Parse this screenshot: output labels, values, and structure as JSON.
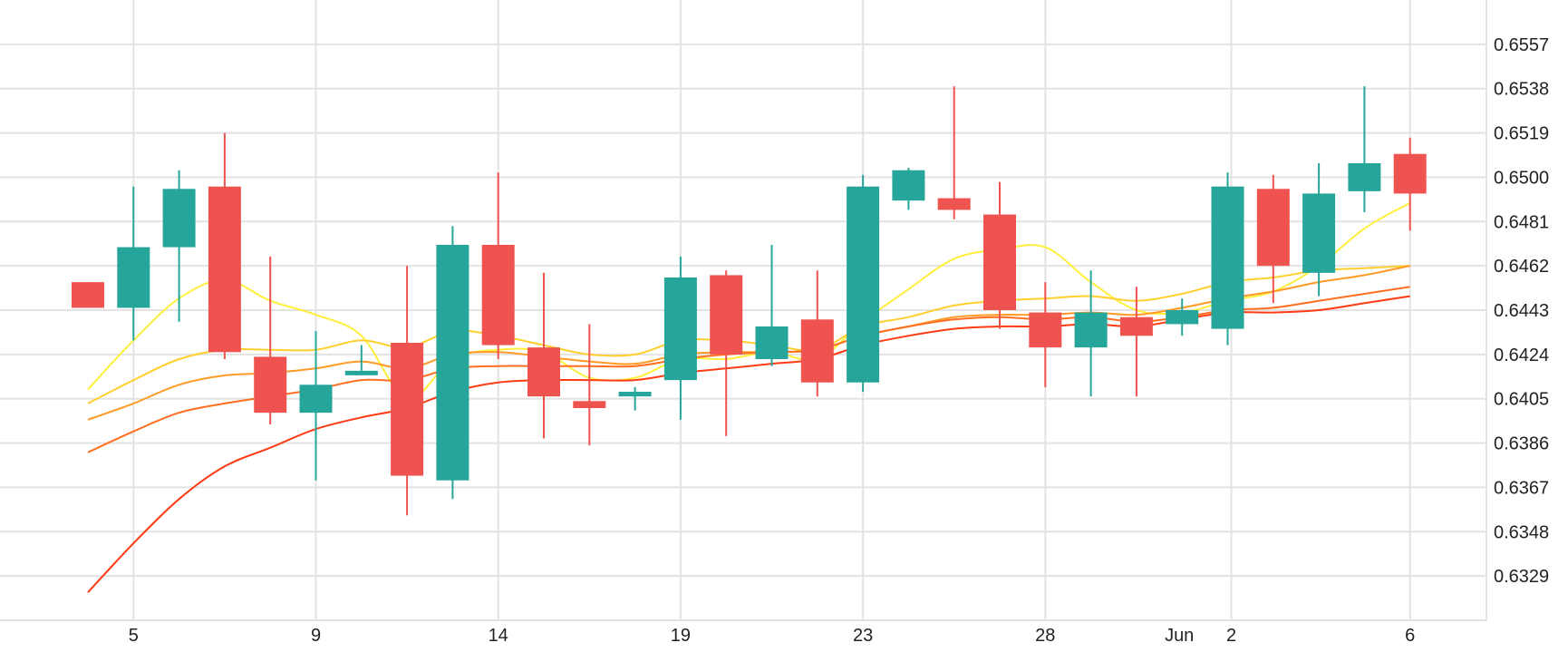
{
  "chart_data": {
    "type": "candlestick",
    "title": "",
    "xlabel": "",
    "ylabel": "",
    "x_tick_labels": [
      "5",
      "9",
      "14",
      "19",
      "23",
      "28",
      "Jun",
      "2",
      "6"
    ],
    "y_ticks": [
      "0.6557",
      "0.6538",
      "0.6519",
      "0.6500",
      "0.6481",
      "0.6462",
      "0.6443",
      "0.6424",
      "0.6405",
      "0.6386",
      "0.6367",
      "0.6348",
      "0.6329"
    ],
    "ylim": [
      0.631,
      0.6576
    ],
    "grid": true,
    "colors": {
      "up": "#26a69a",
      "down": "#ef5350",
      "grid": "#e3e3e3",
      "axis_text": "#222222"
    },
    "dates": [
      "May 4",
      "May 5",
      "May 6",
      "May 7",
      "May 8",
      "May 9",
      "May 10",
      "May 12",
      "May 13",
      "May 14",
      "May 15",
      "May 16",
      "May 18",
      "May 19",
      "May 20",
      "May 21",
      "May 22",
      "May 23",
      "May 24",
      "May 25",
      "May 27",
      "May 28",
      "May 29",
      "May 30",
      "Jun 1",
      "Jun 2",
      "Jun 3",
      "Jun 4",
      "Jun 5",
      "Jun 6"
    ],
    "candles": [
      {
        "date": "May 4",
        "open": 0.6455,
        "high": 0.6455,
        "low": 0.6444,
        "close": 0.6444
      },
      {
        "date": "May 5",
        "open": 0.6444,
        "high": 0.6496,
        "low": 0.643,
        "close": 0.647
      },
      {
        "date": "May 6",
        "open": 0.647,
        "high": 0.6503,
        "low": 0.6438,
        "close": 0.6495
      },
      {
        "date": "May 7",
        "open": 0.6496,
        "high": 0.6519,
        "low": 0.6422,
        "close": 0.6425
      },
      {
        "date": "May 8",
        "open": 0.6423,
        "high": 0.6466,
        "low": 0.6394,
        "close": 0.6399
      },
      {
        "date": "May 9",
        "open": 0.6399,
        "high": 0.6434,
        "low": 0.637,
        "close": 0.6411
      },
      {
        "date": "May 10",
        "open": 0.6417,
        "high": 0.6428,
        "low": 0.6417,
        "close": 0.6417
      },
      {
        "date": "May 12",
        "open": 0.6429,
        "high": 0.6462,
        "low": 0.6355,
        "close": 0.6372
      },
      {
        "date": "May 13",
        "open": 0.637,
        "high": 0.6479,
        "low": 0.6362,
        "close": 0.6471
      },
      {
        "date": "May 14",
        "open": 0.6471,
        "high": 0.6502,
        "low": 0.6422,
        "close": 0.6428
      },
      {
        "date": "May 15",
        "open": 0.6427,
        "high": 0.6459,
        "low": 0.6388,
        "close": 0.6406
      },
      {
        "date": "May 16",
        "open": 0.6404,
        "high": 0.6437,
        "low": 0.6385,
        "close": 0.6401
      },
      {
        "date": "May 18",
        "open": 0.6406,
        "high": 0.641,
        "low": 0.64,
        "close": 0.6408
      },
      {
        "date": "May 19",
        "open": 0.6413,
        "high": 0.6466,
        "low": 0.6396,
        "close": 0.6457
      },
      {
        "date": "May 20",
        "open": 0.6458,
        "high": 0.646,
        "low": 0.6389,
        "close": 0.6424
      },
      {
        "date": "May 21",
        "open": 0.6422,
        "high": 0.6471,
        "low": 0.6419,
        "close": 0.6436
      },
      {
        "date": "May 22",
        "open": 0.6439,
        "high": 0.646,
        "low": 0.6406,
        "close": 0.6412
      },
      {
        "date": "May 23",
        "open": 0.6412,
        "high": 0.6501,
        "low": 0.6408,
        "close": 0.6496
      },
      {
        "date": "May 24",
        "open": 0.649,
        "high": 0.6504,
        "low": 0.6486,
        "close": 0.6503
      },
      {
        "date": "May 25",
        "open": 0.6491,
        "high": 0.6539,
        "low": 0.6482,
        "close": 0.6486
      },
      {
        "date": "May 27",
        "open": 0.6484,
        "high": 0.6498,
        "low": 0.6435,
        "close": 0.6443
      },
      {
        "date": "May 28",
        "open": 0.6442,
        "high": 0.6455,
        "low": 0.641,
        "close": 0.6427
      },
      {
        "date": "May 29",
        "open": 0.6427,
        "high": 0.646,
        "low": 0.6406,
        "close": 0.6442
      },
      {
        "date": "May 30",
        "open": 0.644,
        "high": 0.6453,
        "low": 0.6406,
        "close": 0.6432
      },
      {
        "date": "Jun 1",
        "open": 0.6437,
        "high": 0.6448,
        "low": 0.6432,
        "close": 0.6443
      },
      {
        "date": "Jun 2",
        "open": 0.6435,
        "high": 0.6502,
        "low": 0.6428,
        "close": 0.6496
      },
      {
        "date": "Jun 3",
        "open": 0.6495,
        "high": 0.6501,
        "low": 0.6446,
        "close": 0.6462
      },
      {
        "date": "Jun 4",
        "open": 0.6459,
        "high": 0.6506,
        "low": 0.6449,
        "close": 0.6493
      },
      {
        "date": "Jun 5",
        "open": 0.6494,
        "high": 0.6539,
        "low": 0.6485,
        "close": 0.6506
      },
      {
        "date": "Jun 6",
        "open": 0.651,
        "high": 0.6517,
        "low": 0.6477,
        "close": 0.6493
      }
    ],
    "series": [
      {
        "color": "#ffef3a",
        "values": [
          0.6409,
          0.643,
          0.6448,
          0.6456,
          0.6447,
          0.6441,
          0.6432,
          0.6405,
          0.6422,
          0.6426,
          0.6425,
          0.6414,
          0.6414,
          0.6422,
          0.6422,
          0.6425,
          0.6422,
          0.6438,
          0.6452,
          0.6465,
          0.6469,
          0.647,
          0.6455,
          0.6443,
          0.6442,
          0.6447,
          0.6451,
          0.6462,
          0.6478,
          0.6489
        ]
      },
      {
        "color": "#ffcf2e",
        "values": [
          0.6403,
          0.6413,
          0.6422,
          0.6426,
          0.6426,
          0.6426,
          0.643,
          0.6427,
          0.6434,
          0.6432,
          0.6428,
          0.6424,
          0.6424,
          0.643,
          0.643,
          0.6428,
          0.6426,
          0.6436,
          0.644,
          0.6445,
          0.6447,
          0.6448,
          0.6449,
          0.6447,
          0.645,
          0.6455,
          0.6457,
          0.646,
          0.6461,
          0.6462
        ]
      },
      {
        "color": "#ff9a26",
        "values": [
          0.6396,
          0.6403,
          0.6411,
          0.6415,
          0.6416,
          0.6418,
          0.6421,
          0.6418,
          0.6424,
          0.6425,
          0.6423,
          0.6421,
          0.642,
          0.6424,
          0.6425,
          0.6425,
          0.6426,
          0.6432,
          0.6436,
          0.644,
          0.6441,
          0.6441,
          0.6442,
          0.6441,
          0.6444,
          0.6448,
          0.6451,
          0.6455,
          0.6458,
          0.6462
        ]
      },
      {
        "color": "#ff6f1f",
        "values": [
          0.6382,
          0.6391,
          0.6399,
          0.6403,
          0.6406,
          0.6409,
          0.6413,
          0.6413,
          0.6418,
          0.6419,
          0.6419,
          0.6419,
          0.6419,
          0.6422,
          0.6424,
          0.6425,
          0.6426,
          0.6432,
          0.6436,
          0.6439,
          0.644,
          0.6439,
          0.644,
          0.6438,
          0.644,
          0.6443,
          0.6444,
          0.6447,
          0.645,
          0.6453
        ]
      },
      {
        "color": "#ff3b14",
        "values": [
          0.6322,
          0.6343,
          0.6362,
          0.6376,
          0.6384,
          0.6392,
          0.6397,
          0.6401,
          0.6408,
          0.6412,
          0.6413,
          0.6413,
          0.6413,
          0.6416,
          0.6418,
          0.642,
          0.6422,
          0.6428,
          0.6432,
          0.6435,
          0.6436,
          0.6436,
          0.6437,
          0.6436,
          0.6439,
          0.6442,
          0.6442,
          0.6443,
          0.6446,
          0.6449
        ]
      }
    ]
  }
}
